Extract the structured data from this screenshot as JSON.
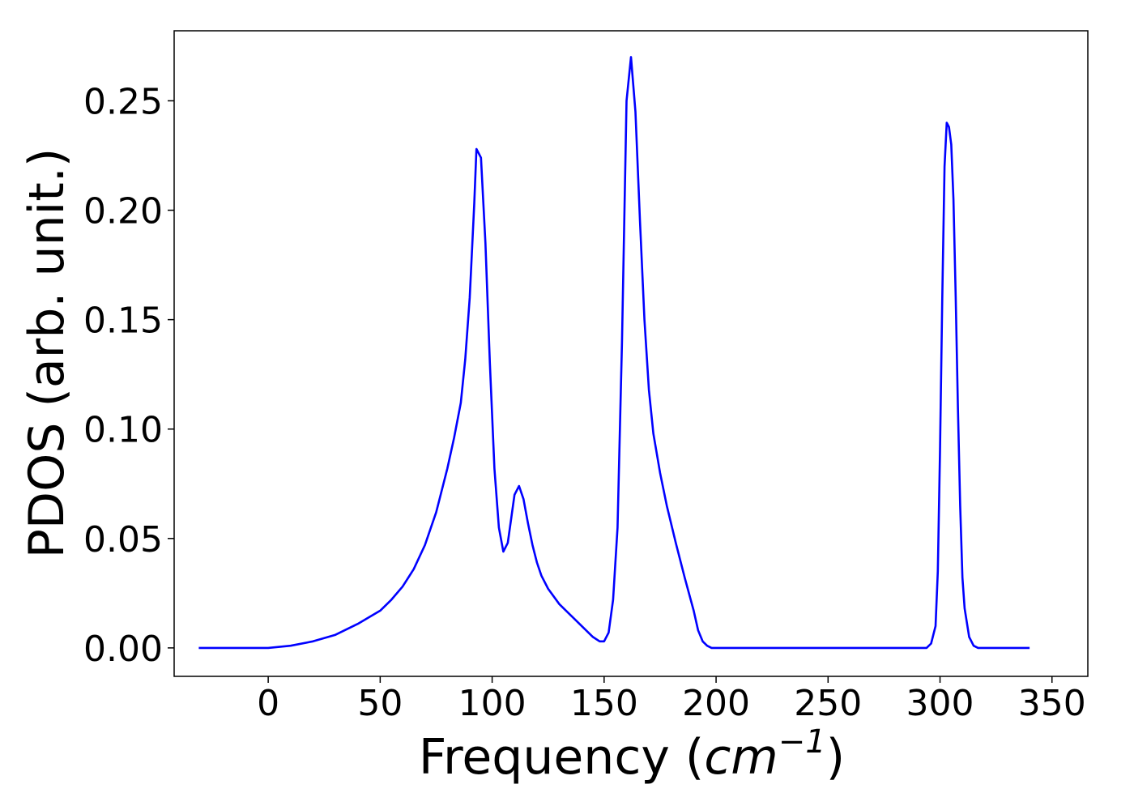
{
  "chart_data": {
    "type": "line",
    "xlabel": "Frequency",
    "xlabel_unit_base": "cm",
    "xlabel_unit_exp": "−1",
    "ylabel": "PDOS (arb. unit.)",
    "xlim": [
      -42,
      366
    ],
    "ylim": [
      -0.013,
      0.282
    ],
    "xticks": [
      0,
      50,
      100,
      150,
      200,
      250,
      300,
      350
    ],
    "xtick_labels": [
      "0",
      "50",
      "100",
      "150",
      "200",
      "250",
      "300",
      "350"
    ],
    "yticks": [
      0.0,
      0.05,
      0.1,
      0.15,
      0.2,
      0.25
    ],
    "ytick_labels": [
      "0.00",
      "0.05",
      "0.10",
      "0.15",
      "0.20",
      "0.25"
    ],
    "grid": false,
    "series": [
      {
        "color": "#0000ff",
        "x": [
          -31,
          0,
          10,
          20,
          30,
          40,
          50,
          55,
          60,
          65,
          70,
          75,
          80,
          83,
          86,
          88,
          90,
          92,
          93,
          95,
          97,
          99,
          101,
          103,
          105,
          107,
          110,
          112,
          114,
          116,
          118,
          120,
          122,
          125,
          130,
          135,
          140,
          145,
          148,
          150,
          152,
          154,
          156,
          158,
          160,
          162,
          164,
          166,
          168,
          170,
          172,
          175,
          178,
          182,
          186,
          190,
          192,
          194,
          196,
          198,
          200,
          210,
          250,
          290,
          294,
          296,
          298,
          299,
          300,
          301,
          302,
          303,
          304,
          305,
          306,
          307,
          308,
          309,
          310,
          311,
          313,
          315,
          317,
          320,
          340
        ],
        "y": [
          0,
          0,
          0.001,
          0.003,
          0.006,
          0.011,
          0.017,
          0.022,
          0.028,
          0.036,
          0.047,
          0.062,
          0.082,
          0.096,
          0.112,
          0.132,
          0.16,
          0.203,
          0.228,
          0.224,
          0.185,
          0.13,
          0.082,
          0.055,
          0.044,
          0.048,
          0.07,
          0.074,
          0.068,
          0.057,
          0.047,
          0.039,
          0.033,
          0.027,
          0.02,
          0.015,
          0.01,
          0.005,
          0.003,
          0.003,
          0.007,
          0.022,
          0.055,
          0.14,
          0.25,
          0.27,
          0.245,
          0.195,
          0.15,
          0.118,
          0.098,
          0.08,
          0.065,
          0.048,
          0.032,
          0.017,
          0.008,
          0.003,
          0.001,
          0.0,
          0.0,
          0.0,
          0.0,
          0.0,
          0.0,
          0.002,
          0.01,
          0.035,
          0.09,
          0.16,
          0.22,
          0.24,
          0.238,
          0.23,
          0.205,
          0.16,
          0.11,
          0.065,
          0.032,
          0.018,
          0.005,
          0.001,
          0.0,
          0.0,
          0.0
        ]
      }
    ]
  }
}
